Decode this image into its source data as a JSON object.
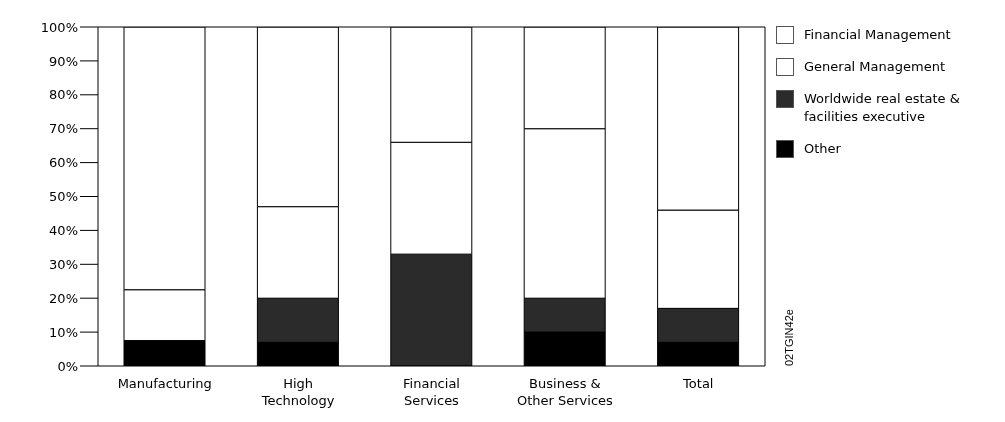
{
  "chart_data": {
    "type": "bar",
    "stacked": true,
    "categories": [
      "Manufacturing",
      "High Technology",
      "Financial Services",
      "Business & Other Services",
      "Total"
    ],
    "series": [
      {
        "name": "Other",
        "color": "#000000",
        "values": [
          7.5,
          7,
          0,
          10,
          7
        ]
      },
      {
        "name": "Worldwide real estate & facilities executive",
        "color": "#2b2b2b",
        "values": [
          0,
          13,
          33,
          10,
          10
        ]
      },
      {
        "name": "General Management",
        "color": "#ffffff",
        "values": [
          15,
          27,
          33,
          50,
          29
        ]
      },
      {
        "name": "Financial Management",
        "color": "#ffffff",
        "values": [
          77.5,
          53,
          34,
          30,
          54
        ]
      }
    ],
    "ylim": [
      0,
      100
    ],
    "yticks": [
      {
        "value": 0,
        "label": "0%"
      },
      {
        "value": 10,
        "label": "10%"
      },
      {
        "value": 20,
        "label": "20%"
      },
      {
        "value": 30,
        "label": "30%"
      },
      {
        "value": 40,
        "label": "40%"
      },
      {
        "value": 50,
        "label": "50%"
      },
      {
        "value": 60,
        "label": "60%"
      },
      {
        "value": 70,
        "label": "70%"
      },
      {
        "value": 80,
        "label": "80%"
      },
      {
        "value": 90,
        "label": "90%"
      },
      {
        "value": 100,
        "label": "100%"
      }
    ],
    "grid": false,
    "legend": "right",
    "annotations": [
      "02TGIN42e"
    ]
  }
}
